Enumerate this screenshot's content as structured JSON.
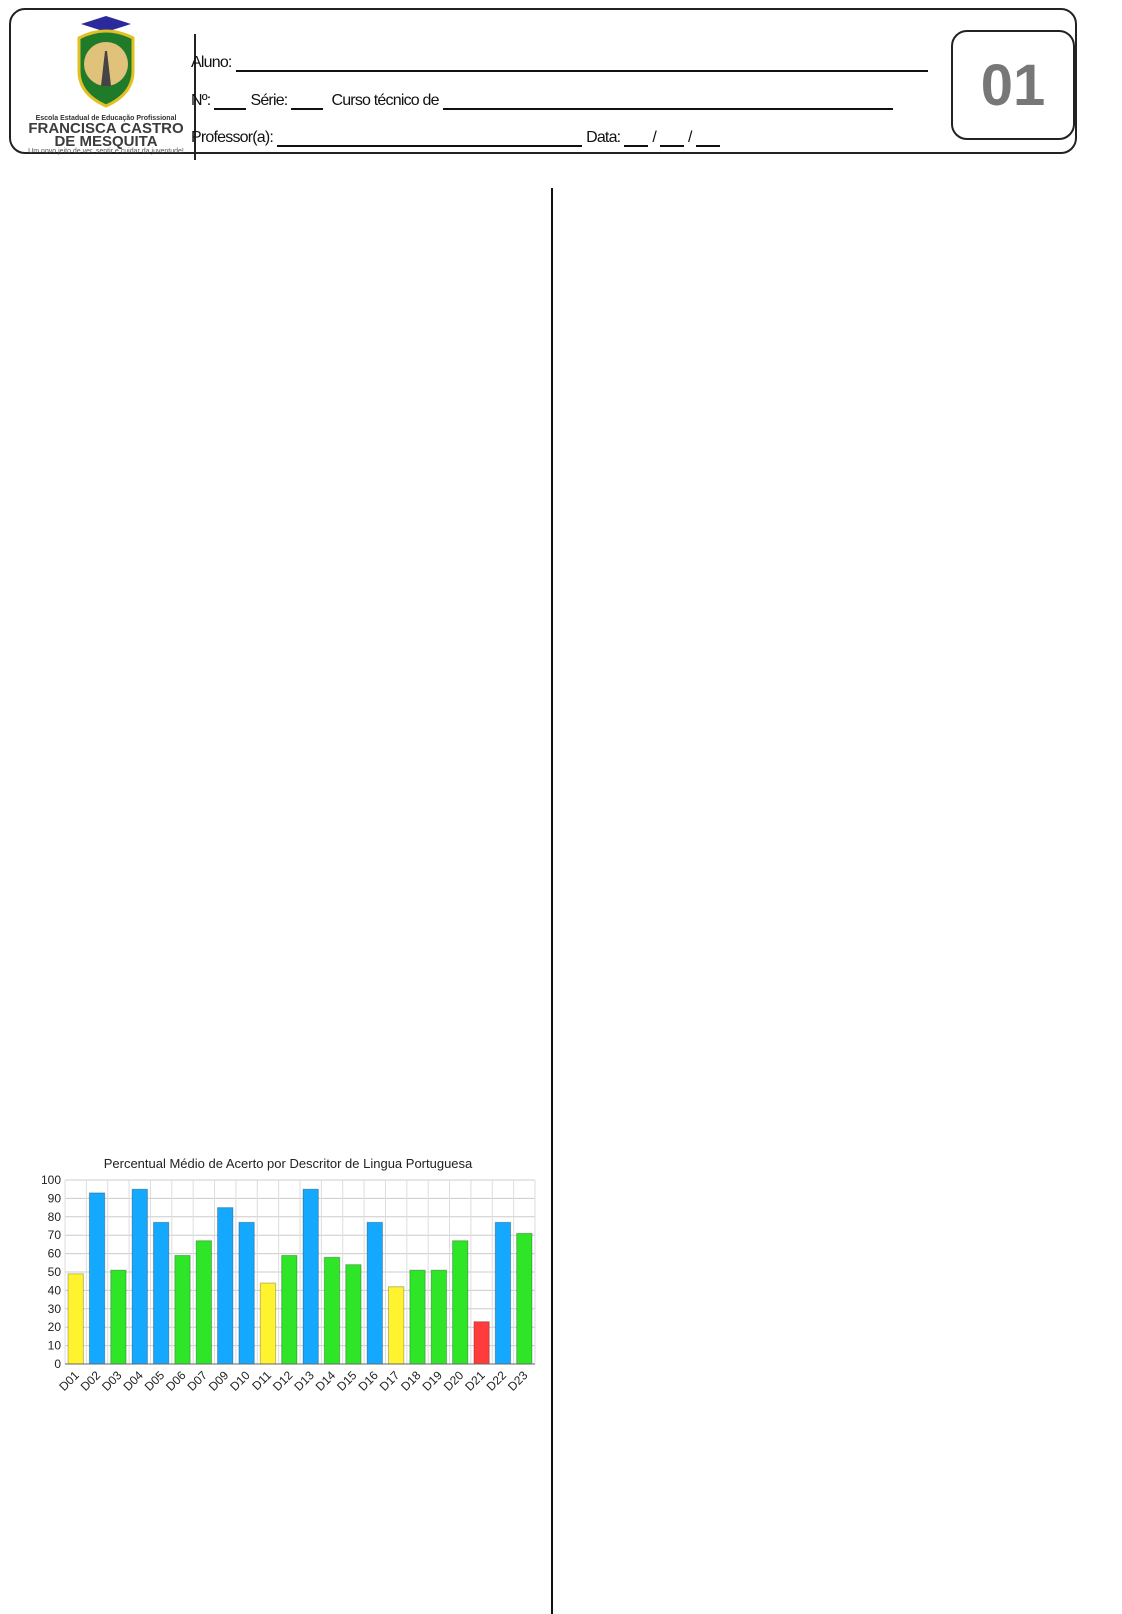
{
  "header": {
    "school_line1": "Escola Estadual de Educação Profissional",
    "school_name_1": "FRANCISCA CASTRO",
    "school_name_2": "DE MESQUITA",
    "motto": "Um novo jeito de ver, sentir e cuidar da juventude!",
    "aluno_label": "Aluno:",
    "numero_label": "Nº:",
    "serie_label": "Série:",
    "curso_label": "Curso técnico de",
    "professor_label": "Professor(a):",
    "data_label": "Data:",
    "date_sep": "/",
    "page_number": "01"
  },
  "chart_data": {
    "type": "bar",
    "title": "Percentual Médio de Acerto por Descritor de Lingua Portuguesa",
    "categories": [
      "D01",
      "D02",
      "D03",
      "D04",
      "D05",
      "D06",
      "D07",
      "D09",
      "D10",
      "D11",
      "D12",
      "D13",
      "D14",
      "D15",
      "D16",
      "D17",
      "D18",
      "D19",
      "D20",
      "D21",
      "D22",
      "D23"
    ],
    "values": [
      49,
      93,
      51,
      95,
      77,
      59,
      67,
      85,
      77,
      44,
      59,
      95,
      58,
      54,
      77,
      42,
      51,
      51,
      67,
      23,
      77,
      71
    ],
    "bar_colors": [
      "#fff22e",
      "#14a8ff",
      "#2ee528",
      "#14a8ff",
      "#14a8ff",
      "#2ee528",
      "#2ee528",
      "#14a8ff",
      "#14a8ff",
      "#fff22e",
      "#2ee528",
      "#14a8ff",
      "#2ee528",
      "#2ee528",
      "#14a8ff",
      "#fff22e",
      "#2ee528",
      "#2ee528",
      "#2ee528",
      "#ff3b3b",
      "#14a8ff",
      "#2ee528"
    ],
    "yticks": [
      "0",
      "10",
      "20",
      "30",
      "40",
      "50",
      "60",
      "70",
      "80",
      "90",
      "100"
    ],
    "ylim": [
      0,
      100
    ],
    "grid": true,
    "xlabel": "",
    "ylabel": ""
  }
}
